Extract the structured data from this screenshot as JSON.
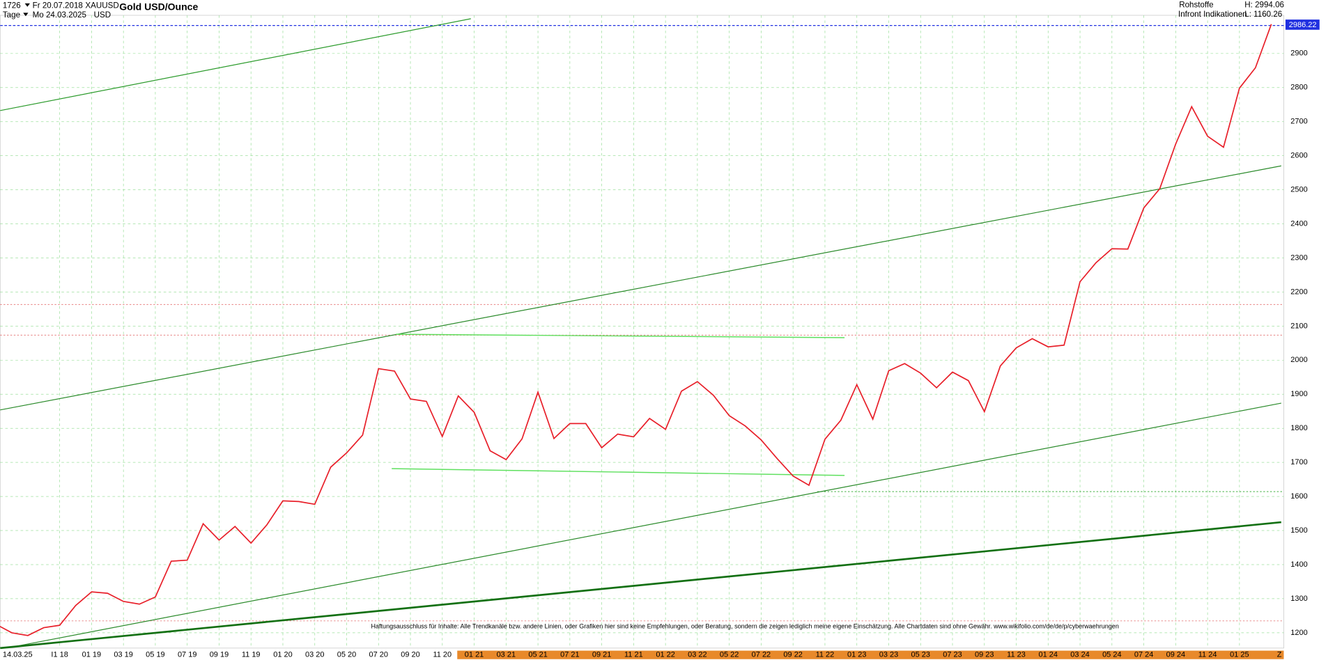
{
  "header": {
    "count": "1726",
    "start": "Fr 20.07.2018",
    "symbol": "XAUUSD",
    "period": "Tage",
    "end": "Mo 24.03.2025",
    "currency": "USD",
    "market": "Rohstoffe",
    "high": "H: 2994.06",
    "source": "Infront Indikationen",
    "low": "L: 1160.26"
  },
  "footer": {
    "cursor_date": "14.03.25",
    "corner": "Z",
    "price_tag": "2986.22",
    "disclaimer": "Haftungsausschluss für Inhalte: Alle Trendkanäle bzw. andere Linien, oder Grafiken hier sind keine Empfehlungen, oder Beratung, sondern die zeigen lediglich meine eigene Einschätzung. Alle Chartdaten sind ohne Gewähr. www.wikifolio.com/de/de/p/cyberwaehrungen"
  },
  "chart_data": {
    "type": "line",
    "title": "Gold USD/Ounce",
    "categories": [
      null,
      null,
      null,
      null,
      "I1 18",
      null,
      "01 19",
      null,
      "03 19",
      null,
      "05 19",
      null,
      "07 19",
      null,
      "09 19",
      null,
      "11 19",
      null,
      "01 20",
      null,
      "03 20",
      null,
      "05 20",
      null,
      "07 20",
      null,
      "09 20",
      null,
      "11 20",
      null,
      "01 21",
      null,
      "03 21",
      null,
      "05 21",
      null,
      "07 21",
      null,
      "09 21",
      null,
      "11 21",
      null,
      "01 22",
      null,
      "03 22",
      null,
      "05 22",
      null,
      "07 22",
      null,
      "09 22",
      null,
      "11 22",
      null,
      "01 23",
      null,
      "03 23",
      null,
      "05 23",
      null,
      "07 23",
      null,
      "09 23",
      null,
      "11 23",
      null,
      "01 24",
      null,
      "03 24",
      null,
      "05 24",
      null,
      "07 24",
      null,
      "09 24",
      null,
      "11 24",
      null,
      "01 25",
      null,
      null
    ],
    "series": [
      {
        "name": "XAUUSD",
        "color": "#e8202a",
        "values": [
          1225,
          1200,
          1192,
          1215,
          1222,
          1280,
          1320,
          1316,
          1292,
          1284,
          1305,
          1410,
          1413,
          1520,
          1472,
          1512,
          1463,
          1517,
          1587,
          1585,
          1577,
          1686,
          1728,
          1780,
          1975,
          1968,
          1886,
          1879,
          1776,
          1895,
          1847,
          1734,
          1708,
          1769,
          1906,
          1770,
          1814,
          1814,
          1743,
          1783,
          1775,
          1829,
          1797,
          1909,
          1937,
          1897,
          1837,
          1807,
          1766,
          1711,
          1660,
          1633,
          1768,
          1824,
          1928,
          1827,
          1969,
          1990,
          1962,
          1919,
          1965,
          1940,
          1849,
          1983,
          2036,
          2063,
          2039,
          2044,
          2230,
          2286,
          2327,
          2326,
          2447,
          2503,
          2634,
          2744,
          2657,
          2625,
          2798,
          2858,
          2986
        ]
      }
    ],
    "ylim": [
      1155,
      3012
    ],
    "yticks": [
      1200,
      1300,
      1400,
      1500,
      1600,
      1700,
      1800,
      1900,
      2000,
      2100,
      2200,
      2300,
      2400,
      2500,
      2600,
      2700,
      2800,
      2900
    ],
    "grid": true
  }
}
